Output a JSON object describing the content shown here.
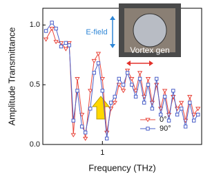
{
  "chart_data": {
    "type": "line",
    "x_label": "Frequency (THz)",
    "y_label": "Amplitude Transmittance",
    "xlog": true,
    "x": [
      0.42,
      0.46,
      0.49,
      0.53,
      0.57,
      0.6,
      0.64,
      0.68,
      0.73,
      0.77,
      0.83,
      0.88,
      0.94,
      1.0,
      1.07,
      1.14,
      1.21,
      1.29,
      1.38,
      1.47,
      1.57,
      1.67,
      1.78,
      1.9,
      2.02,
      2.15,
      2.3,
      2.45,
      2.61,
      2.78,
      2.97,
      3.16,
      3.37,
      3.59,
      3.83,
      4.08,
      4.35
    ],
    "series": [
      {
        "name": "0°",
        "color": "#e8443a",
        "marker": "triangle-down",
        "values": [
          0.88,
          0.97,
          0.86,
          0.85,
          0.8,
          0.85,
          0.08,
          0.55,
          0.25,
          0.05,
          0.45,
          0.7,
          0.76,
          0.55,
          0.1,
          0.3,
          0.35,
          0.5,
          0.45,
          0.62,
          0.55,
          0.45,
          0.6,
          0.4,
          0.55,
          0.35,
          0.5,
          0.3,
          0.45,
          0.25,
          0.4,
          0.3,
          0.35,
          0.2,
          0.4,
          0.25,
          0.3
        ]
      },
      {
        "name": "90°",
        "color": "#4a5fc8",
        "marker": "square",
        "values": [
          0.95,
          1.02,
          0.97,
          0.82,
          0.85,
          0.83,
          0.2,
          0.45,
          0.15,
          0.1,
          0.3,
          0.6,
          0.68,
          0.45,
          0.05,
          0.35,
          0.4,
          0.55,
          0.5,
          0.6,
          0.5,
          0.4,
          0.55,
          0.35,
          0.5,
          0.3,
          0.55,
          0.25,
          0.4,
          0.2,
          0.45,
          0.25,
          0.3,
          0.15,
          0.35,
          0.2,
          0.25
        ]
      }
    ],
    "xlim": [
      0.4,
      4.6
    ],
    "xticks": [
      1
    ],
    "ylim": [
      0,
      1.14
    ],
    "yticks": [
      {
        "value": 0,
        "label": "0.0"
      },
      {
        "value": 0.5,
        "label": "0.5"
      },
      {
        "value": 1,
        "label": "1.0"
      }
    ],
    "legend": "lower-right",
    "annotations": [
      "E-field",
      "Vortex gen"
    ]
  }
}
